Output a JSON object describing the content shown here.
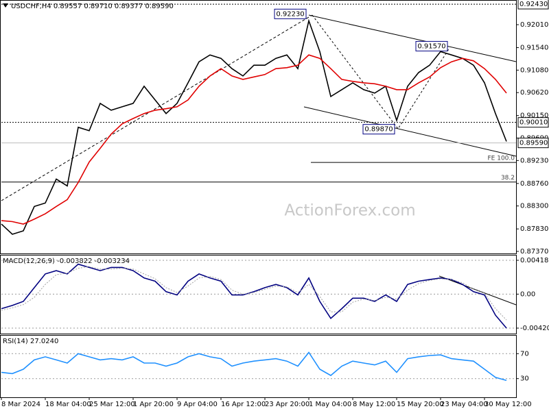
{
  "chart_data": [
    {
      "type": "line",
      "title": "USDCHF,H4 0.89557 0.89710 0.89377 0.89590",
      "watermark": "ActionForex.com",
      "categories": [
        "8 Mar 2024",
        null,
        null,
        null,
        "18 Mar 04:00",
        null,
        null,
        null,
        "25 Mar 12:00",
        null,
        null,
        null,
        "1 Apr 20:00",
        null,
        null,
        null,
        "9 Apr 04:00",
        null,
        null,
        null,
        "16 Apr 12:00",
        null,
        null,
        null,
        "23 Apr 20:00",
        null,
        null,
        null,
        "1 May 04:00",
        null,
        null,
        null,
        "8 May 12:00",
        null,
        null,
        null,
        "15 May 20:00",
        null,
        null,
        null,
        "23 May 04:00",
        null,
        null,
        null,
        "30 May 12:00",
        null,
        null
      ],
      "series": [
        {
          "color": "#000000",
          "values": [
            0.8793,
            0.8772,
            0.8779,
            0.8829,
            0.8836,
            0.8885,
            0.8871,
            0.8991,
            0.8984,
            0.904,
            0.9026,
            0.9033,
            0.904,
            0.9075,
            0.9047,
            0.9019,
            0.904,
            0.9082,
            0.9125,
            0.9139,
            0.9132,
            0.9111,
            0.9096,
            0.9118,
            0.9118,
            0.9132,
            0.9139,
            0.9111,
            0.9209,
            0.9146,
            0.9054,
            0.9068,
            0.9082,
            0.9068,
            0.9061,
            0.9075,
            0.9005,
            0.9075,
            0.9103,
            0.9118,
            0.9146,
            0.9139,
            0.9132,
            0.9118,
            0.9082,
            0.9019,
            0.8962
          ]
        },
        {
          "color": "#e00000",
          "values": [
            0.88,
            0.8798,
            0.8793,
            0.8803,
            0.8814,
            0.8829,
            0.8843,
            0.8878,
            0.892,
            0.8948,
            0.8977,
            0.8998,
            0.9009,
            0.9019,
            0.9026,
            0.9029,
            0.9033,
            0.9047,
            0.9075,
            0.9096,
            0.9111,
            0.9096,
            0.9089,
            0.9094,
            0.9099,
            0.9111,
            0.9113,
            0.9118,
            0.9139,
            0.9132,
            0.9111,
            0.9089,
            0.9085,
            0.9082,
            0.908,
            0.9075,
            0.9068,
            0.9068,
            0.9082,
            0.9094,
            0.9113,
            0.9125,
            0.9132,
            0.9127,
            0.9111,
            0.9089,
            0.9061
          ]
        }
      ],
      "ylim": [
        0.87328,
        0.92515
      ],
      "yticks": [
        {
          "value": 0.9201,
          "label": "0.92010"
        },
        {
          "value": 0.9154,
          "label": "0.91540"
        },
        {
          "value": 0.9108,
          "label": "0.91080"
        },
        {
          "value": 0.9062,
          "label": "0.90620"
        },
        {
          "value": 0.9015,
          "label": "0.90150"
        },
        {
          "value": 0.8969,
          "label": "0.89690"
        },
        {
          "value": 0.8923,
          "label": "0.89230"
        },
        {
          "value": 0.8876,
          "label": "0.88760"
        },
        {
          "value": 0.883,
          "label": "0.88300"
        },
        {
          "value": 0.8783,
          "label": "0.87830"
        },
        {
          "value": 0.8737,
          "label": "0.87370"
        }
      ],
      "levels": [
        {
          "value": 0.9243,
          "label": "0.92430"
        },
        {
          "value": 0.9001,
          "label": "0.90010"
        },
        {
          "value": 0.8959,
          "label": "0.89590"
        }
      ],
      "fib_levels": [
        {
          "value": 0.8919,
          "label": "FE 100.0"
        },
        {
          "value": 0.8879,
          "label": "38.2"
        }
      ],
      "annotations": [
        {
          "value": 0.9223,
          "label": "0.92230"
        },
        {
          "value": 0.9157,
          "label": "0.91570"
        },
        {
          "value": 0.8987,
          "label": "0.89870"
        }
      ],
      "grid": false
    },
    {
      "type": "line",
      "title": "MACD(12,26,9) -0.003822 -0.003234",
      "series": [
        {
          "color": "#000080",
          "values": [
            -0.0018,
            -0.0014,
            -0.0009,
            0.0008,
            0.0025,
            0.0029,
            0.0025,
            0.0037,
            0.0033,
            0.0029,
            0.0033,
            0.0033,
            0.0029,
            0.002,
            0.0016,
            0.0003,
            -0.0001,
            0.0016,
            0.0025,
            0.002,
            0.0016,
            -0.0001,
            -0.0001,
            0.0003,
            0.0008,
            0.0012,
            0.0008,
            -0.0001,
            0.002,
            -0.0009,
            -0.003,
            -0.0018,
            -0.0005,
            -0.0005,
            -0.0009,
            -0.0001,
            -0.0009,
            0.0012,
            0.0016,
            0.0018,
            0.002,
            0.0018,
            0.0012,
            0.0003,
            -0.0001,
            -0.0026,
            -0.0042
          ]
        },
        {
          "color": "#a0a0a0",
          "style": "dotted",
          "values": [
            -0.002,
            -0.0017,
            -0.0013,
            -0.0004,
            0.0012,
            0.0024,
            0.0026,
            0.0032,
            0.0034,
            0.0031,
            0.0031,
            0.0032,
            0.0031,
            0.0025,
            0.0019,
            0.0008,
            0.0002,
            0.001,
            0.002,
            0.0022,
            0.0018,
            0.0005,
            0,
            0.0002,
            0.0006,
            0.001,
            0.0009,
            0.0002,
            0.0012,
            -0.0003,
            -0.0022,
            -0.0022,
            -0.001,
            -0.0006,
            -0.0008,
            -0.0004,
            -0.0006,
            0.0005,
            0.0013,
            0.0017,
            0.0019,
            0.0018,
            0.0014,
            0.0006,
            0.0001,
            -0.0018,
            -0.0032
          ]
        }
      ],
      "ylim": [
        -0.004881,
        0.00486
      ],
      "yticks": [
        0.004182,
        {
          "value": 0,
          "label": "0.00"
        },
        -0.004203
      ],
      "grid": true
    },
    {
      "type": "line",
      "title": "RSI(14) 27.0240",
      "series": [
        {
          "color": "#1e90ff",
          "values": [
            40,
            38,
            45,
            60,
            65,
            60,
            55,
            70,
            65,
            60,
            62,
            60,
            65,
            55,
            55,
            50,
            55,
            65,
            70,
            65,
            62,
            50,
            55,
            58,
            60,
            62,
            58,
            50,
            72,
            45,
            35,
            50,
            58,
            55,
            52,
            58,
            40,
            62,
            65,
            67,
            68,
            62,
            60,
            58,
            45,
            32,
            27
          ]
        }
      ],
      "ylim": [
        0,
        100
      ],
      "yticks": [
        70,
        30
      ],
      "grid": true
    }
  ]
}
